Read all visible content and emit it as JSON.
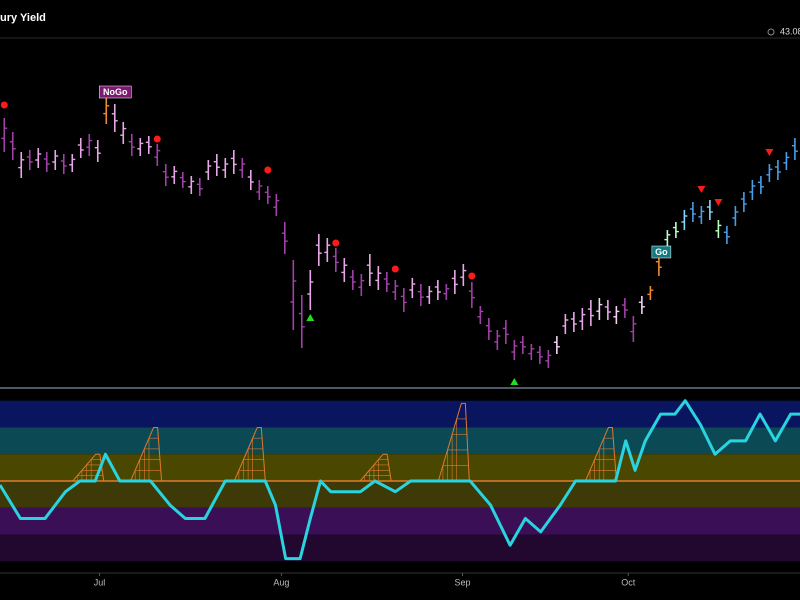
{
  "chart_data": {
    "type": "ohlc",
    "title": "ury Yield",
    "header_value": "43.08",
    "xlim": [
      -0.5,
      93.6
    ],
    "xticks": [
      {
        "value": 11.2,
        "label": "Jul"
      },
      {
        "value": 32.6,
        "label": "Aug"
      },
      {
        "value": 53.9,
        "label": "Sep"
      },
      {
        "value": 73.4,
        "label": "Oct"
      }
    ],
    "ylim": [
      0,
      350
    ],
    "highs": [
      272,
      258,
      238,
      240,
      242,
      238,
      240,
      236,
      236,
      252,
      256,
      250,
      292,
      286,
      268,
      256,
      252,
      254,
      246,
      226,
      224,
      218,
      214,
      212,
      230,
      236,
      232,
      240,
      232,
      220,
      210,
      204,
      196,
      168,
      130,
      95,
      120,
      156,
      152,
      142,
      132,
      120,
      116,
      136,
      124,
      118,
      110,
      102,
      112,
      106,
      104,
      110,
      106,
      120,
      126,
      108,
      84,
      72,
      60,
      70,
      50,
      54,
      46,
      44,
      40,
      54,
      76,
      78,
      82,
      90,
      92,
      90,
      84,
      92,
      74,
      94,
      104,
      136,
      160,
      168,
      180,
      188,
      184,
      190,
      170,
      164,
      184,
      198,
      210,
      214,
      226,
      230,
      238,
      252
    ],
    "lows": [
      238,
      230,
      212,
      220,
      222,
      218,
      220,
      216,
      218,
      232,
      234,
      228,
      266,
      258,
      246,
      234,
      234,
      236,
      224,
      204,
      206,
      202,
      196,
      194,
      210,
      214,
      212,
      216,
      212,
      200,
      190,
      186,
      174,
      136,
      60,
      42,
      80,
      124,
      128,
      118,
      108,
      100,
      94,
      104,
      100,
      98,
      90,
      78,
      92,
      84,
      86,
      90,
      90,
      96,
      104,
      82,
      66,
      50,
      40,
      46,
      30,
      36,
      30,
      26,
      22,
      36,
      56,
      58,
      60,
      64,
      70,
      70,
      66,
      72,
      48,
      76,
      90,
      114,
      144,
      152,
      160,
      168,
      166,
      170,
      152,
      146,
      164,
      178,
      190,
      196,
      208,
      210,
      220,
      230
    ],
    "colors": [
      "#a040a8",
      "#a040a8",
      "#e8a8e8",
      "#a040a8",
      "#e8a8e8",
      "#a040a8",
      "#e8a8e8",
      "#a040a8",
      "#e8a8e8",
      "#e8a8e8",
      "#a040a8",
      "#e8a8e8",
      "#f0882c",
      "#e8a8e8",
      "#e8a8e8",
      "#a040a8",
      "#e8a8e8",
      "#e8a8e8",
      "#a040a8",
      "#a040a8",
      "#e8a8e8",
      "#a040a8",
      "#e8a8e8",
      "#a040a8",
      "#e8a8e8",
      "#e8a8e8",
      "#e8a8e8",
      "#e8a8e8",
      "#a040a8",
      "#e8a8e8",
      "#a040a8",
      "#a040a8",
      "#a040a8",
      "#a040a8",
      "#a040a8",
      "#a040a8",
      "#e8a8e8",
      "#e8a8e8",
      "#e8a8e8",
      "#a040a8",
      "#e8a8e8",
      "#a040a8",
      "#a040a8",
      "#e8a8e8",
      "#e8a8e8",
      "#a040a8",
      "#a040a8",
      "#a040a8",
      "#e8a8e8",
      "#a040a8",
      "#e8a8e8",
      "#e8a8e8",
      "#a040a8",
      "#e8a8e8",
      "#e8a8e8",
      "#a040a8",
      "#a040a8",
      "#a040a8",
      "#a040a8",
      "#a040a8",
      "#a040a8",
      "#a040a8",
      "#a040a8",
      "#a040a8",
      "#a040a8",
      "#f4d0f4",
      "#e8a8e8",
      "#e8a8e8",
      "#e8a8e8",
      "#e8a8e8",
      "#f4d0f4",
      "#e8a8e8",
      "#f4d0f4",
      "#a040a8",
      "#a040a8",
      "#f4d0f4",
      "#f0882c",
      "#f0882c",
      "#b8ffc0",
      "#b8ffc0",
      "#80d8ff",
      "#4a9ee8",
      "#4a9ee8",
      "#80d8ff",
      "#b8ffc0",
      "#4a9ee8",
      "#4a9ee8",
      "#4a9ee8",
      "#4a9ee8",
      "#4a9ee8",
      "#4a9ee8",
      "#4a9ee8",
      "#4a9ee8",
      "#4a9ee8"
    ],
    "markers": [
      {
        "shape": "dot",
        "bar": 0,
        "value": 285,
        "color": "#ff1a1a"
      },
      {
        "shape": "dot",
        "bar": 18,
        "value": 251,
        "color": "#ff1a1a"
      },
      {
        "shape": "dot",
        "bar": 31,
        "value": 220,
        "color": "#ff1a1a"
      },
      {
        "shape": "dot",
        "bar": 39,
        "value": 147,
        "color": "#ff1a1a"
      },
      {
        "shape": "dot",
        "bar": 46,
        "value": 121,
        "color": "#ff1a1a"
      },
      {
        "shape": "dot",
        "bar": 55,
        "value": 114,
        "color": "#ff1a1a"
      },
      {
        "shape": "down",
        "bar": 82,
        "value": 201,
        "color": "#ff1a1a"
      },
      {
        "shape": "down",
        "bar": 84,
        "value": 188,
        "color": "#ff1a1a"
      },
      {
        "shape": "down",
        "bar": 90,
        "value": 238,
        "color": "#ff1a1a"
      },
      {
        "shape": "up",
        "bar": 36,
        "value": 72,
        "color": "#22dd22"
      },
      {
        "shape": "up",
        "bar": 60,
        "value": 8,
        "color": "#22dd22"
      }
    ],
    "annotations": [
      {
        "text": "NoGo",
        "bar": 12,
        "value": 298,
        "color": "#7a1a70"
      },
      {
        "text": "Go",
        "bar": 77,
        "value": 138,
        "color": "#127a80"
      }
    ],
    "oscillator": {
      "ylim": [
        -3.4,
        3.4
      ],
      "zero_line": 0,
      "color": "#29d3e0",
      "bands": [
        {
          "from": 3,
          "to": 2,
          "color": "#0a1560"
        },
        {
          "from": 2,
          "to": 1,
          "color": "#0b4a55"
        },
        {
          "from": 1,
          "to": 0,
          "color": "#4a4800"
        },
        {
          "from": 0,
          "to": -1,
          "color": "#3d3a08"
        },
        {
          "from": -1,
          "to": -2,
          "color": "#3a0f55"
        },
        {
          "from": -2,
          "to": -3,
          "color": "#22082e"
        }
      ],
      "x": [
        -0.5,
        1.9,
        4.8,
        7.2,
        8.9,
        10.7,
        11.9,
        13.6,
        17.2,
        19.5,
        21.3,
        23.6,
        26,
        30.7,
        31.9,
        33.1,
        34.8,
        36,
        37.2,
        38.4,
        41.9,
        43.6,
        46,
        47.8,
        54.8,
        57.2,
        59.5,
        61.3,
        63.1,
        65.4,
        67.2,
        71.9,
        73.1,
        74.2,
        75.4,
        77.2,
        78.9,
        80.1,
        81.9,
        83.6,
        85.4,
        87.2,
        88.9,
        90.7,
        92.5,
        93.6
      ],
      "values": [
        -0.15,
        -1.4,
        -1.4,
        -0.4,
        0,
        0,
        1,
        0,
        0,
        -0.9,
        -1.4,
        -1.4,
        0,
        0,
        -0.9,
        -2.9,
        -2.9,
        -1.4,
        0,
        -0.4,
        -0.4,
        0,
        -0.4,
        0,
        0,
        -0.9,
        -2.4,
        -1.4,
        -1.9,
        -0.9,
        0,
        0,
        1.5,
        0.4,
        1.5,
        2.5,
        2.5,
        3,
        2.1,
        1,
        1.5,
        1.5,
        2.5,
        1.5,
        2.5,
        2.5
      ],
      "spikes": {
        "color": "#e07a2a",
        "x": [
          11,
          17.8,
          30,
          44.8,
          54,
          71.3
        ],
        "values": [
          1,
          2,
          2,
          1,
          2.9,
          2
        ]
      }
    }
  }
}
